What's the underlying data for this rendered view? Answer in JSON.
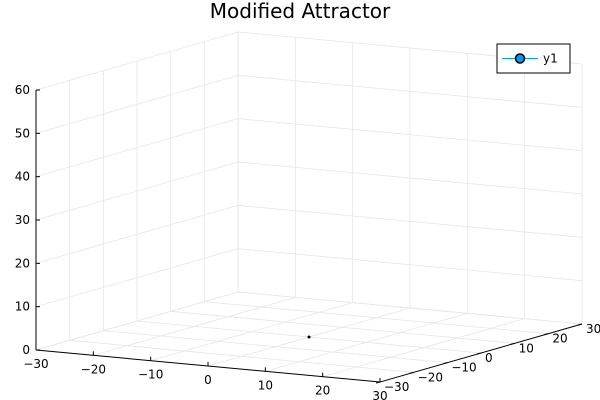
{
  "chart_data": {
    "type": "scatter",
    "title": "Modified Attractor",
    "xlabel": "",
    "ylabel": "",
    "zlabel": "",
    "xlim": [
      -30,
      30
    ],
    "ylim": [
      -30,
      30
    ],
    "zlim": [
      0,
      60
    ],
    "x_ticks": [
      -30,
      -20,
      -10,
      0,
      10,
      20,
      30
    ],
    "y_ticks": [
      -30,
      -20,
      -10,
      0,
      10,
      20,
      30
    ],
    "z_ticks": [
      0,
      10,
      20,
      30,
      40,
      50,
      60
    ],
    "grid": true,
    "legend_position": "top-right",
    "series": [
      {
        "name": "y1",
        "color": "#009af9",
        "marker": "circle",
        "points": [
          {
            "x": 0,
            "y": 0,
            "z": 0
          }
        ]
      }
    ]
  }
}
